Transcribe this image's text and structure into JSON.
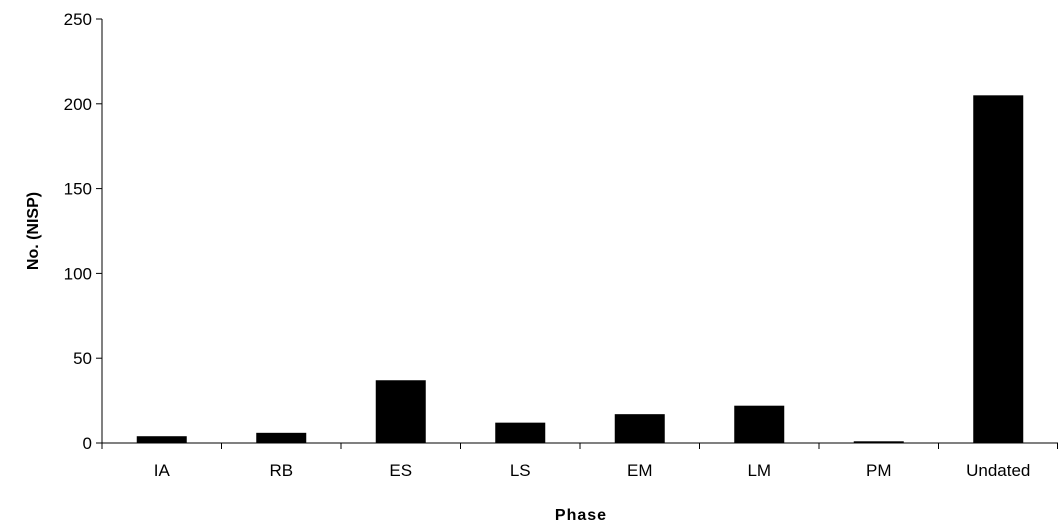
{
  "chart_data": {
    "type": "bar",
    "title": "",
    "xlabel": "Phase",
    "ylabel": "No. (NISP)",
    "categories": [
      "IA",
      "RB",
      "ES",
      "LS",
      "EM",
      "LM",
      "PM",
      "Undated"
    ],
    "values": [
      4,
      6,
      37,
      12,
      17,
      22,
      1,
      205
    ],
    "ylim": [
      0,
      250
    ],
    "yticks": [
      0,
      50,
      100,
      150,
      200,
      250
    ],
    "grid": false,
    "legend": "none",
    "bar_color": "#000000"
  }
}
